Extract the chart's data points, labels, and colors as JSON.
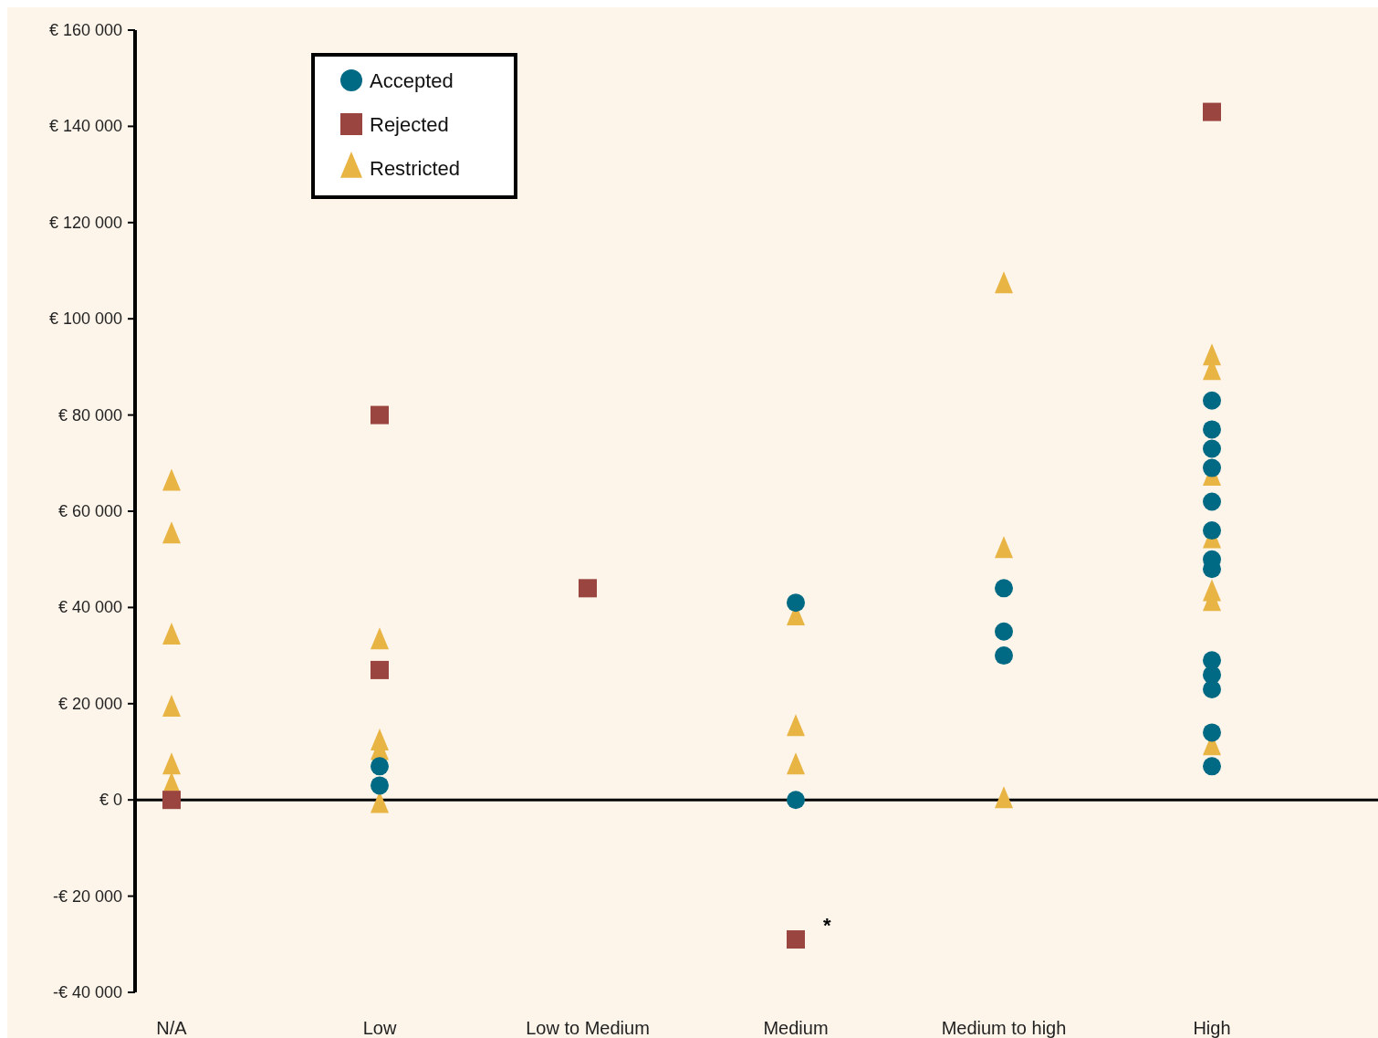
{
  "chart_data": {
    "type": "scatter",
    "categories": [
      "N/A",
      "Low",
      "Low to Medium",
      "Medium",
      "Medium to high",
      "High"
    ],
    "ylim": [
      -40000,
      160000
    ],
    "yticks": [
      {
        "value": 160000,
        "label": "€ 160 000"
      },
      {
        "value": 140000,
        "label": "€ 140 000"
      },
      {
        "value": 120000,
        "label": "€ 120 000"
      },
      {
        "value": 100000,
        "label": "€ 100 000"
      },
      {
        "value": 80000,
        "label": "€ 80 000"
      },
      {
        "value": 60000,
        "label": "€ 60 000"
      },
      {
        "value": 40000,
        "label": "€ 40 000"
      },
      {
        "value": 20000,
        "label": "€ 20 000"
      },
      {
        "value": 0,
        "label": "€ 0"
      },
      {
        "value": -20000,
        "label": "-€ 20 000"
      },
      {
        "value": -40000,
        "label": "-€ 40 000"
      }
    ],
    "grid": false,
    "legend": "top left",
    "ref_lines": [
      {
        "axis": "y",
        "value": 0,
        "color": "#000000"
      }
    ],
    "series": [
      {
        "name": "Accepted",
        "color": "#006a85",
        "marker": "circle",
        "x": [
          "Low",
          "Low",
          "Medium",
          "Medium",
          "Medium to high",
          "Medium to high",
          "Medium to high",
          "High",
          "High",
          "High",
          "High",
          "High",
          "High",
          "High",
          "High",
          "High",
          "High",
          "High",
          "High",
          "High"
        ],
        "values": [
          7000,
          3000,
          41000,
          0,
          44000,
          35000,
          30000,
          83000,
          77000,
          73000,
          69000,
          62000,
          56000,
          50000,
          48000,
          29000,
          26000,
          23000,
          14000,
          7000
        ]
      },
      {
        "name": "Rejected",
        "color": "#9b4540",
        "marker": "square",
        "x": [
          "N/A",
          "Low",
          "Low",
          "Low to Medium",
          "Medium",
          "High"
        ],
        "values": [
          0,
          80000,
          27000,
          44000,
          -29000,
          143000
        ]
      },
      {
        "name": "Restricted",
        "color": "#e8b444",
        "marker": "triangle",
        "x": [
          "N/A",
          "N/A",
          "N/A",
          "N/A",
          "N/A",
          "N/A",
          "Low",
          "Low",
          "Low",
          "Low",
          "Medium",
          "Medium",
          "Medium",
          "Medium to high",
          "Medium to high",
          "Medium to high",
          "High",
          "High",
          "High",
          "High",
          "High",
          "High",
          "High"
        ],
        "values": [
          66000,
          55000,
          34000,
          19000,
          7000,
          3000,
          33000,
          12000,
          10000,
          -1000,
          38000,
          15000,
          7000,
          107000,
          52000,
          0,
          92000,
          89000,
          67000,
          54000,
          43000,
          41000,
          11000
        ]
      }
    ],
    "annotations": [
      {
        "text": "*",
        "x": "Medium",
        "y": -29000
      }
    ]
  }
}
